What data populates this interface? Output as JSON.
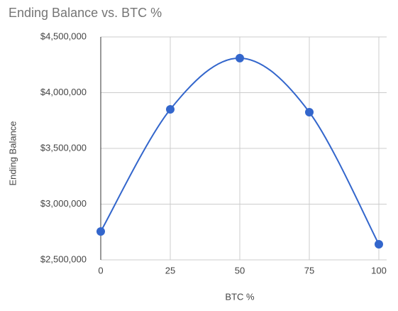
{
  "chart_data": {
    "type": "line",
    "title": "Ending Balance vs. BTC %",
    "x_label": "BTC %",
    "y_label": "Ending Balance",
    "x": [
      0,
      25,
      50,
      75,
      100
    ],
    "series": [
      {
        "name": "Ending Balance",
        "color": "#3366cc",
        "values": [
          2755000,
          3850000,
          4310000,
          3825000,
          2640000
        ]
      }
    ],
    "xlim": [
      0,
      100
    ],
    "xticks": [
      0,
      25,
      50,
      75,
      100
    ],
    "ylim": [
      2500000,
      4500000
    ],
    "yticks": [
      {
        "value": 2500000,
        "label": "$2,500,000"
      },
      {
        "value": 3000000,
        "label": "$3,000,000"
      },
      {
        "value": 3500000,
        "label": "$3,500,000"
      },
      {
        "value": 4000000,
        "label": "$4,000,000"
      },
      {
        "value": 4500000,
        "label": "$4,500,000"
      }
    ],
    "grid": true,
    "smooth": true
  }
}
